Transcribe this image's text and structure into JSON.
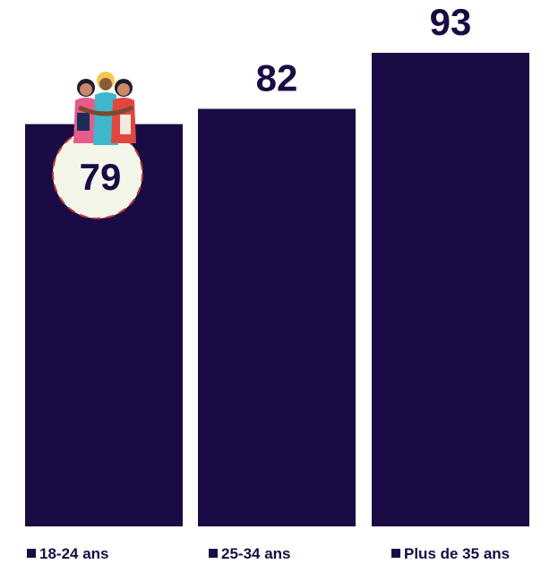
{
  "chart_data": {
    "type": "bar",
    "categories": [
      "18-24 ans",
      "25-34 ans",
      "Plus de 35 ans"
    ],
    "values": [
      79,
      82,
      93
    ],
    "data_labels": [
      "79",
      "82",
      "93"
    ],
    "title": "",
    "xlabel": "",
    "ylabel": "",
    "legend": {
      "position": "bottom",
      "entries": [
        "18-24 ans",
        "25-34 ans",
        "Plus de 35 ans"
      ]
    },
    "grid": false,
    "highlighted_category": "18-24 ans",
    "illustration_icon": "friends-hugging-icon"
  },
  "colors": {
    "bar": "#1a0b45",
    "label": "#1a0b45",
    "highlight_circle_fill": "#f3f6e8",
    "highlight_circle_stroke": "#c0392b",
    "legend_text": "#1a0b45"
  }
}
